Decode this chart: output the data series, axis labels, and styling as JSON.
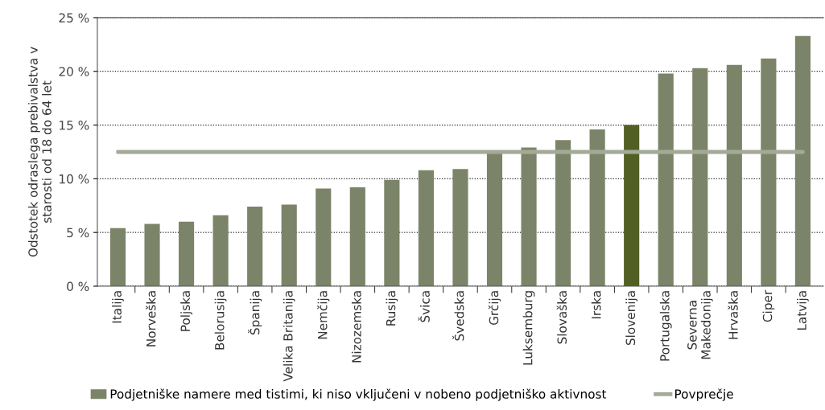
{
  "chart_data": {
    "type": "bar",
    "ylabel": "Odstotek odraslega prebivalstva v\nstarosti od 18 do 64 let",
    "categories": [
      "Italija",
      "Norveška",
      "Poljska",
      "Belorusija",
      "Španija",
      "Velika Britanija",
      "Nemčija",
      "Nizozemska",
      "Rusija",
      "Švica",
      "Švedska",
      "Grčija",
      "Luksemburg",
      "Slovaška",
      "Irska",
      "Slovenija",
      "Portugalska",
      "Severna\nMakedonija",
      "Hrvaška",
      "Ciper",
      "Latvija"
    ],
    "series": [
      {
        "name": "Podjetniške namere med tistimi, ki niso vključeni v nobeno podjetniško aktivnost",
        "color": "#7b8468",
        "colors": [
          "#7b8468",
          "#7b8468",
          "#7b8468",
          "#7b8468",
          "#7b8468",
          "#7b8468",
          "#7b8468",
          "#7b8468",
          "#7b8468",
          "#7b8468",
          "#7b8468",
          "#7b8468",
          "#7b8468",
          "#7b8468",
          "#7b8468",
          "#525f24",
          "#7b8468",
          "#7b8468",
          "#7b8468",
          "#7b8468",
          "#7b8468"
        ],
        "values": [
          5.4,
          5.8,
          6.0,
          6.6,
          7.4,
          7.6,
          9.1,
          9.2,
          9.9,
          10.8,
          10.9,
          12.4,
          12.9,
          13.6,
          14.6,
          15.0,
          19.8,
          20.3,
          20.6,
          21.2,
          23.3
        ]
      },
      {
        "name": "Povprečje",
        "type": "line",
        "color": "#a3ab98",
        "values": [
          12.5,
          12.5,
          12.5,
          12.5,
          12.5,
          12.5,
          12.5,
          12.5,
          12.5,
          12.5,
          12.5,
          12.5,
          12.5,
          12.5,
          12.5,
          12.5,
          12.5,
          12.5,
          12.5,
          12.5,
          12.5
        ]
      }
    ],
    "ylim": [
      0,
      25
    ],
    "yticks": [
      {
        "value": 0,
        "label": "0 %"
      },
      {
        "value": 5,
        "label": "5 %"
      },
      {
        "value": 10,
        "label": "10 %"
      },
      {
        "value": 15,
        "label": "15 %"
      },
      {
        "value": 20,
        "label": "20 %"
      },
      {
        "value": 25,
        "label": "25 %"
      }
    ],
    "grid": "y",
    "legend": "bottom"
  }
}
